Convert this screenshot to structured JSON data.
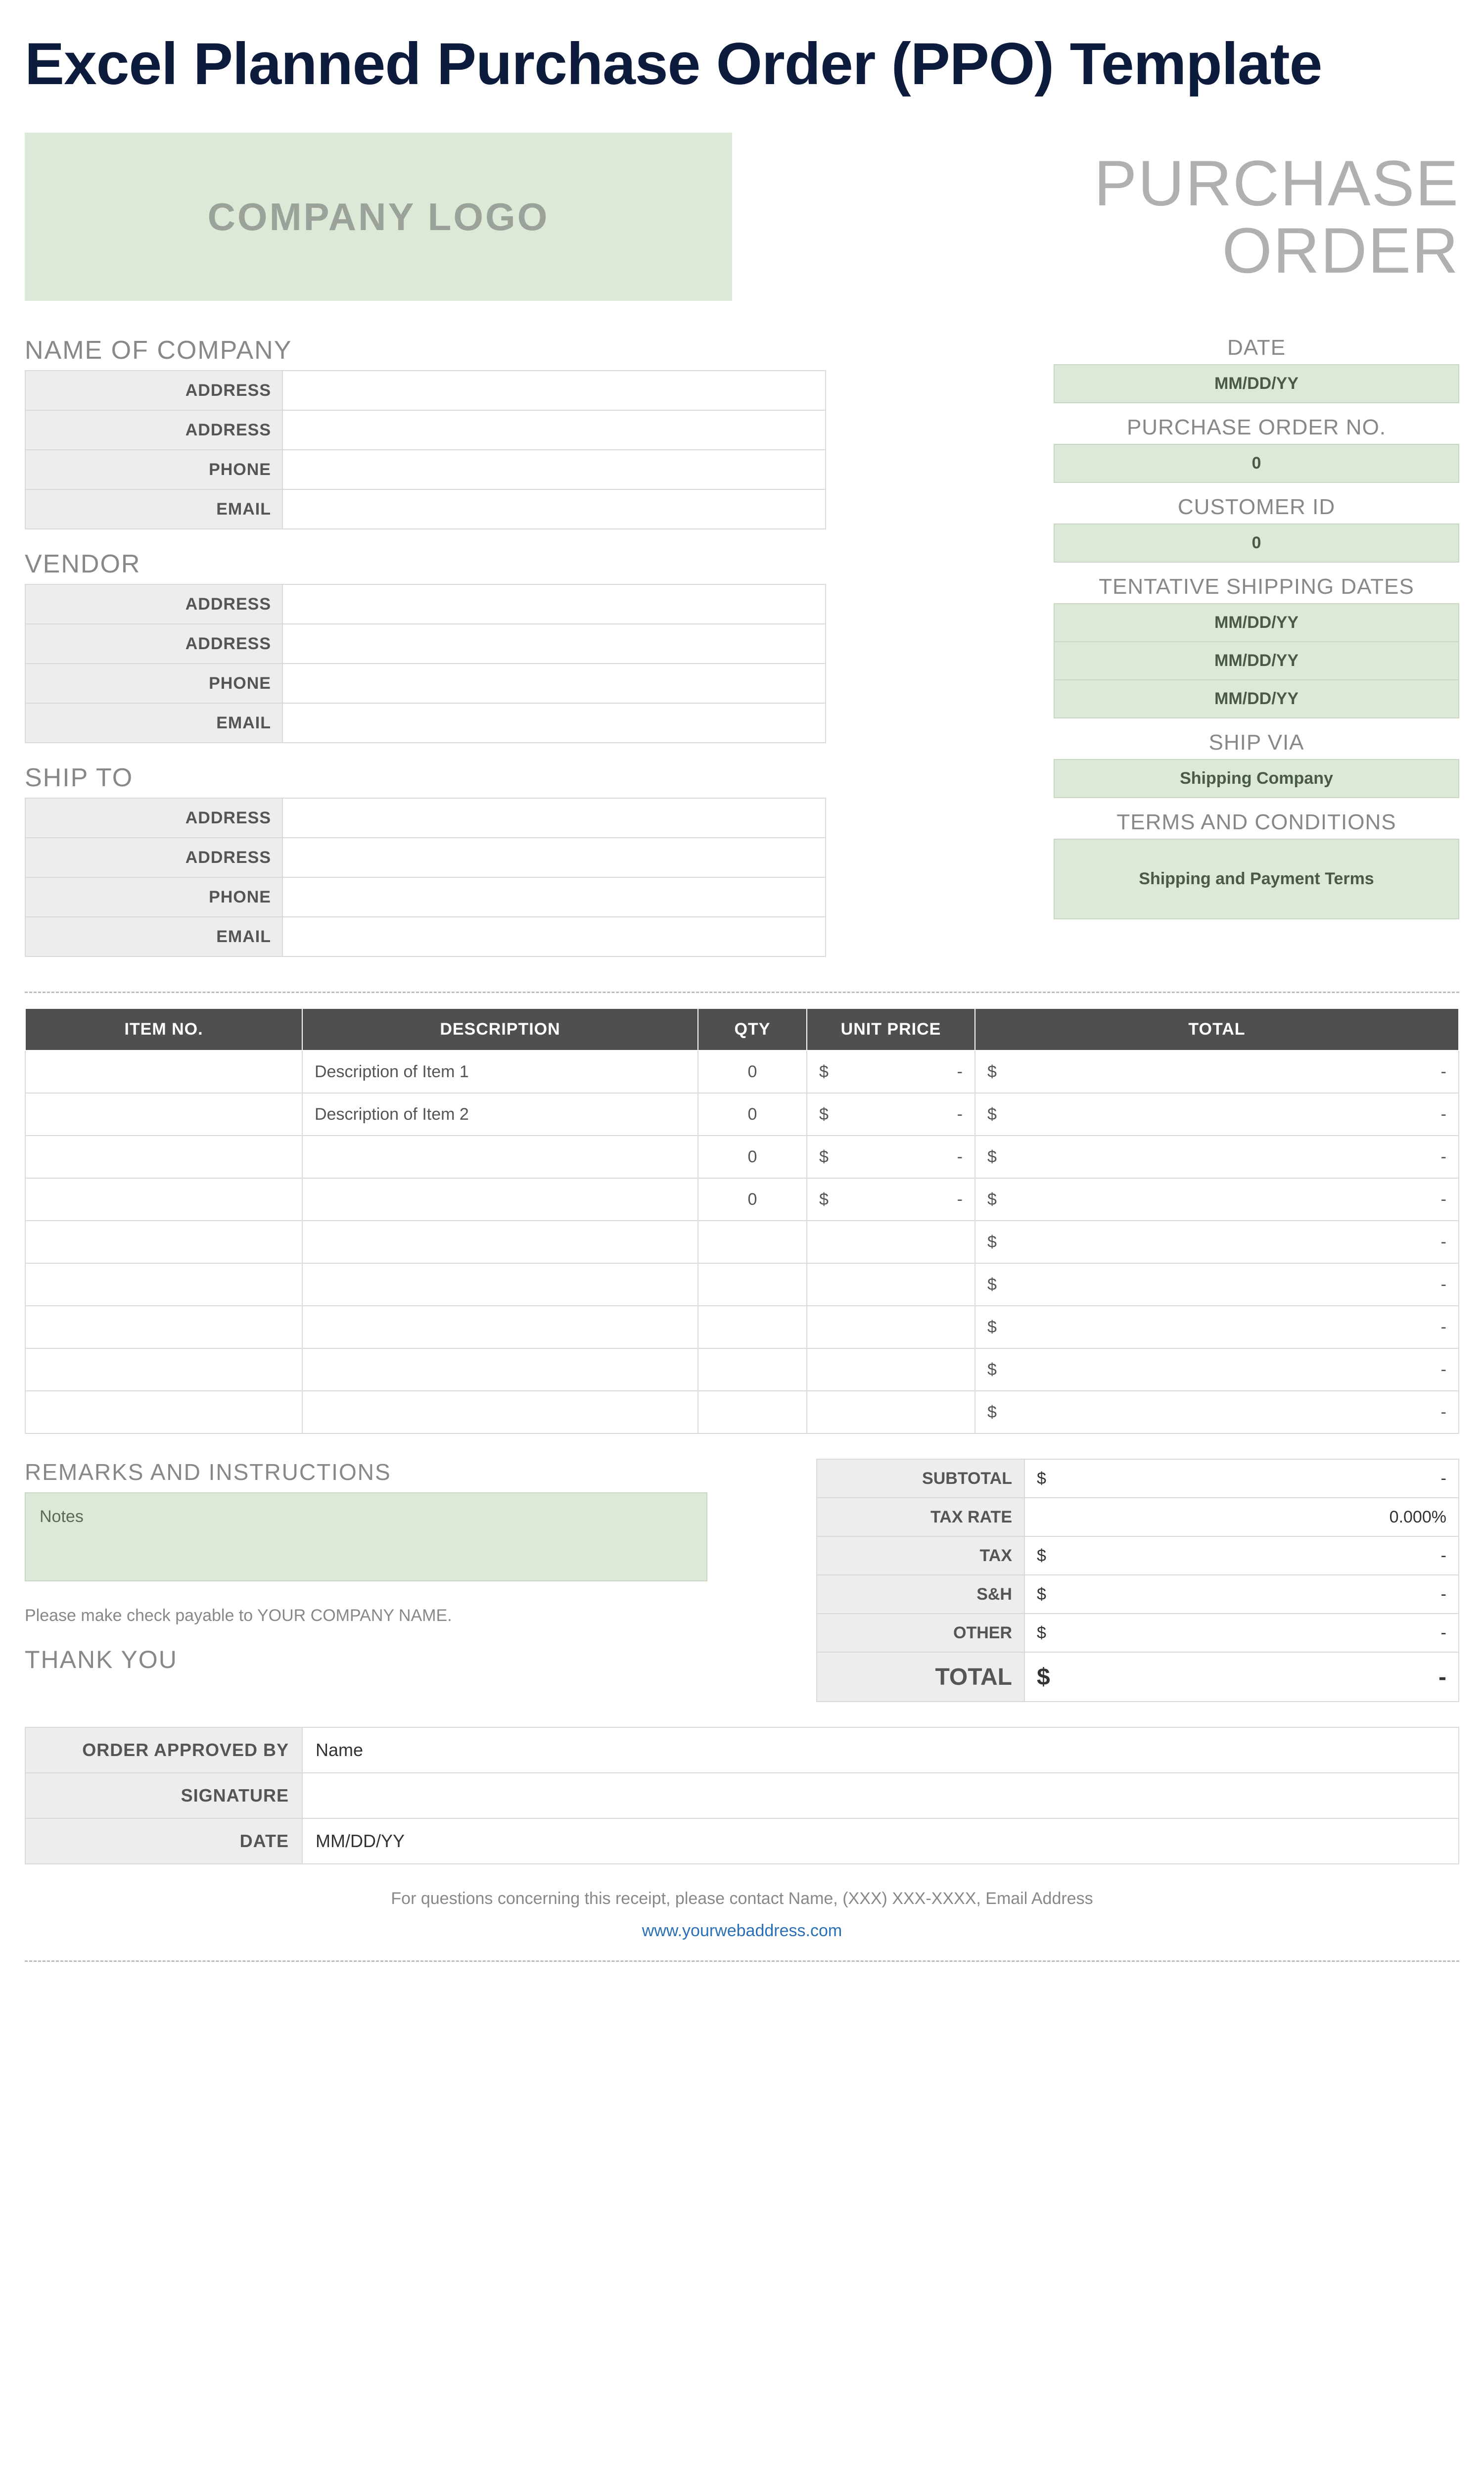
{
  "colors": {
    "title": "#0d1b3d",
    "accent_bg": "#dbe9d6",
    "accent_border": "#c8d6c3",
    "accent_text": "#4a5a48",
    "muted_text": "#888888",
    "header_bg": "#4f4f4f",
    "cell_border": "#d9d9d9",
    "label_bg": "#ededed",
    "link": "#2a6fb5"
  },
  "page_title": "Excel Planned Purchase Order (PPO) Template",
  "logo_text": "COMPANY LOGO",
  "po_title_line1": "PURCHASE",
  "po_title_line2": "ORDER",
  "company": {
    "heading": "NAME OF COMPANY",
    "rows": [
      {
        "label": "ADDRESS",
        "value": ""
      },
      {
        "label": "ADDRESS",
        "value": ""
      },
      {
        "label": "PHONE",
        "value": ""
      },
      {
        "label": "EMAIL",
        "value": ""
      }
    ]
  },
  "vendor": {
    "heading": "VENDOR",
    "rows": [
      {
        "label": "ADDRESS",
        "value": ""
      },
      {
        "label": "ADDRESS",
        "value": ""
      },
      {
        "label": "PHONE",
        "value": ""
      },
      {
        "label": "EMAIL",
        "value": ""
      }
    ]
  },
  "shipto": {
    "heading": "SHIP TO",
    "rows": [
      {
        "label": "ADDRESS",
        "value": ""
      },
      {
        "label": "ADDRESS",
        "value": ""
      },
      {
        "label": "PHONE",
        "value": ""
      },
      {
        "label": "EMAIL",
        "value": ""
      }
    ]
  },
  "meta": {
    "date_label": "DATE",
    "date_value": "MM/DD/YY",
    "po_no_label": "PURCHASE ORDER NO.",
    "po_no_value": "0",
    "customer_id_label": "CUSTOMER ID",
    "customer_id_value": "0",
    "shipping_dates_label": "TENTATIVE SHIPPING DATES",
    "shipping_dates": [
      "MM/DD/YY",
      "MM/DD/YY",
      "MM/DD/YY"
    ],
    "ship_via_label": "SHIP VIA",
    "ship_via_value": "Shipping Company",
    "terms_label": "TERMS AND CONDITIONS",
    "terms_value": "Shipping and Payment Terms"
  },
  "items": {
    "columns": [
      "ITEM NO.",
      "DESCRIPTION",
      "QTY",
      "UNIT PRICE",
      "TOTAL"
    ],
    "currency": "$",
    "dash": "-",
    "rows": [
      {
        "item": "",
        "desc": "Description of Item 1",
        "qty": "0",
        "price": "-",
        "total": "-"
      },
      {
        "item": "",
        "desc": "Description of Item 2",
        "qty": "0",
        "price": "-",
        "total": "-"
      },
      {
        "item": "",
        "desc": "",
        "qty": "0",
        "price": "-",
        "total": "-"
      },
      {
        "item": "",
        "desc": "",
        "qty": "0",
        "price": "-",
        "total": "-"
      },
      {
        "item": "",
        "desc": "",
        "qty": "",
        "price": "",
        "total": "-"
      },
      {
        "item": "",
        "desc": "",
        "qty": "",
        "price": "",
        "total": "-"
      },
      {
        "item": "",
        "desc": "",
        "qty": "",
        "price": "",
        "total": "-"
      },
      {
        "item": "",
        "desc": "",
        "qty": "",
        "price": "",
        "total": "-"
      },
      {
        "item": "",
        "desc": "",
        "qty": "",
        "price": "",
        "total": "-"
      }
    ]
  },
  "remarks": {
    "heading": "REMARKS AND INSTRUCTIONS",
    "notes": "Notes",
    "payable": "Please make check payable to YOUR COMPANY NAME.",
    "thank_you": "THANK YOU"
  },
  "totals": {
    "rows": [
      {
        "label": "SUBTOTAL",
        "sym": "$",
        "value": "-"
      },
      {
        "label": "TAX RATE",
        "sym": "",
        "value": "0.000%"
      },
      {
        "label": "TAX",
        "sym": "$",
        "value": "-"
      },
      {
        "label": "S&H",
        "sym": "$",
        "value": "-"
      },
      {
        "label": "OTHER",
        "sym": "$",
        "value": "-"
      }
    ],
    "total_label": "TOTAL",
    "total_sym": "$",
    "total_value": "-"
  },
  "approval": {
    "rows": [
      {
        "label": "ORDER APPROVED BY",
        "value": "Name"
      },
      {
        "label": "SIGNATURE",
        "value": ""
      },
      {
        "label": "DATE",
        "value": "MM/DD/YY"
      }
    ]
  },
  "footer": {
    "contact": "For questions concerning this receipt, please contact Name, (XXX) XXX-XXXX, Email Address",
    "link": "www.yourwebaddress.com"
  }
}
